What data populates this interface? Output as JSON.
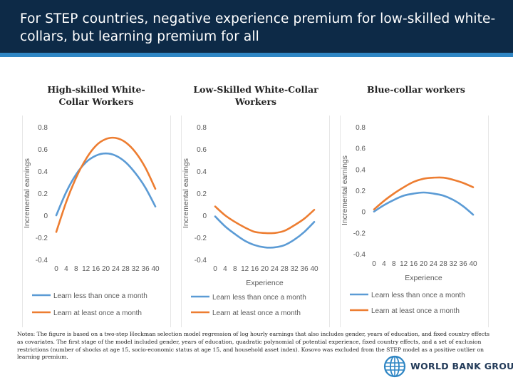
{
  "header": {
    "title": "For STEP countries, negative experience premium for low-skilled white-collars, but learning premium for all"
  },
  "colors": {
    "series1": "#5b9bd5",
    "series2": "#ed7d31",
    "axis_text": "#595959",
    "grid": "#d9d9d9",
    "header_bg": "#0d2a47",
    "header_line": "#2f86c4"
  },
  "chart_data": [
    {
      "type": "line",
      "title": "High-skilled White-Collar Workers",
      "xlabel": "",
      "ylabel": "Incremental earnings",
      "x": [
        0,
        4,
        8,
        12,
        16,
        20,
        24,
        28,
        32,
        36,
        40
      ],
      "x_tick_labels": [
        "0",
        "4",
        "8",
        "12",
        "16",
        "20",
        "24",
        "28",
        "32",
        "36",
        "40"
      ],
      "y_ticks": [
        -0.4,
        -0.2,
        0,
        0.2,
        0.4,
        0.6,
        0.8
      ],
      "y_tick_labels": [
        "-0.4",
        "-0.2",
        "0",
        "0.2",
        "0.4",
        "0.6",
        "0.8"
      ],
      "ylim": [
        -0.4,
        0.8
      ],
      "series": [
        {
          "name": "Learn less than once a month",
          "values": [
            0.0,
            0.21,
            0.37,
            0.48,
            0.54,
            0.56,
            0.54,
            0.48,
            0.38,
            0.25,
            0.08
          ]
        },
        {
          "name": "Learn at least once a month",
          "values": [
            -0.15,
            0.12,
            0.34,
            0.51,
            0.63,
            0.69,
            0.7,
            0.66,
            0.57,
            0.43,
            0.24
          ]
        }
      ]
    },
    {
      "type": "line",
      "title": "Low-Skilled White-Collar Workers",
      "xlabel": "Experience",
      "ylabel": "Incremental earnings",
      "x": [
        0,
        4,
        8,
        12,
        16,
        20,
        24,
        28,
        32,
        36,
        40
      ],
      "x_tick_labels": [
        "0",
        "4",
        "8",
        "12",
        "16",
        "20",
        "24",
        "28",
        "32",
        "36",
        "40"
      ],
      "y_ticks": [
        -0.4,
        -0.2,
        0,
        0.2,
        0.4,
        0.6,
        0.8
      ],
      "y_tick_labels": [
        "-0.4",
        "-0.2",
        "0",
        "0.2",
        "0.4",
        "0.6",
        "0.8"
      ],
      "ylim": [
        -0.4,
        0.8
      ],
      "series": [
        {
          "name": "Learn less than once a month",
          "values": [
            -0.01,
            -0.1,
            -0.17,
            -0.23,
            -0.27,
            -0.29,
            -0.29,
            -0.27,
            -0.22,
            -0.15,
            -0.06
          ]
        },
        {
          "name": "Learn at least once a month",
          "values": [
            0.08,
            0.0,
            -0.06,
            -0.11,
            -0.15,
            -0.16,
            -0.16,
            -0.14,
            -0.09,
            -0.03,
            0.05
          ]
        }
      ]
    },
    {
      "type": "line",
      "title": "Blue-collar workers",
      "xlabel": "Experience",
      "ylabel": "Incremental earnings",
      "x": [
        0,
        4,
        8,
        12,
        16,
        20,
        24,
        28,
        32,
        36,
        40
      ],
      "x_tick_labels": [
        "0",
        "4",
        "8",
        "12",
        "16",
        "20",
        "24",
        "28",
        "32",
        "36",
        "40"
      ],
      "y_ticks": [
        -0.4,
        -0.2,
        0,
        0.2,
        0.4,
        0.6,
        0.8
      ],
      "y_tick_labels": [
        "-0.4",
        "-0.2",
        "0",
        "0.2",
        "0.4",
        "0.6",
        "0.8"
      ],
      "ylim": [
        -0.4,
        0.8
      ],
      "series": [
        {
          "name": "Learn less than once a month",
          "values": [
            0.0,
            0.06,
            0.11,
            0.15,
            0.17,
            0.18,
            0.17,
            0.15,
            0.11,
            0.05,
            -0.03
          ]
        },
        {
          "name": "Learn at least once a month",
          "values": [
            0.02,
            0.1,
            0.17,
            0.23,
            0.28,
            0.31,
            0.32,
            0.32,
            0.3,
            0.27,
            0.23
          ]
        }
      ]
    }
  ],
  "notes": "Notes: The figure is based on a two-step Heckman selection model regression of log hourly earnings that also includes gender, years of education, and fixed country effects as covariates. The first stage of the model included gender, years of education, quadratic polynomial of potential experience, fixed country effects, and a set of exclusion restrictions (number of shocks at age 15, socio-economic status at age 15, and household asset index). Kosovo was excluded from the STEP model as a positive outlier on learning premium.",
  "logo": {
    "text": "WORLD BANK GROUP",
    "icon": "globe-icon"
  }
}
